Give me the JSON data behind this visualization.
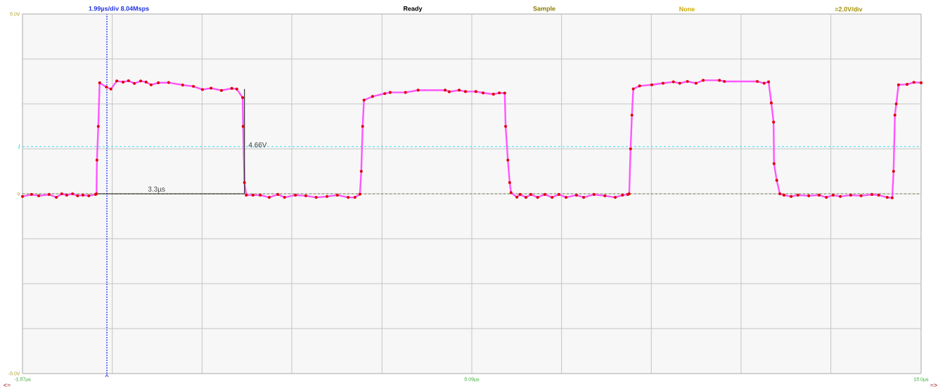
{
  "chart_data": {
    "type": "line",
    "annotations": [
      "1.99µs/div  8.04Msps",
      "Ready",
      "Sample",
      "None",
      "=2.0V/div",
      "<=",
      "=>",
      {
        "text": "3.3µs",
        "x": 0.89,
        "y": 0
      },
      {
        "text": "4.66V",
        "x": 3.12,
        "y": 2.03
      }
    ],
    "xlim": [
      -1.87,
      18.05
    ],
    "ylim": [
      -8,
      8
    ],
    "xticks": [
      {
        "value": -1.87,
        "label": "-1.87µs"
      },
      {
        "value": 0.12,
        "label": null
      },
      {
        "value": 2.11,
        "label": null
      },
      {
        "value": 4.1,
        "label": null
      },
      {
        "value": 6.1,
        "label": null
      },
      {
        "value": 8.09,
        "label": "8.09µs"
      },
      {
        "value": 10.08,
        "label": null
      },
      {
        "value": 12.07,
        "label": null
      },
      {
        "value": 14.06,
        "label": null
      },
      {
        "value": 16.05,
        "label": null
      },
      {
        "value": 18.05,
        "label": "18.0µs"
      }
    ],
    "yticks": [
      {
        "value": 8,
        "label": "8.0V"
      },
      {
        "value": 6,
        "label": null
      },
      {
        "value": 4,
        "label": null
      },
      {
        "value": 2,
        "label": null
      },
      0,
      {
        "value": -2,
        "label": null
      },
      {
        "value": -4,
        "label": null
      },
      {
        "value": -6,
        "label": null
      },
      {
        "value": -8,
        "label": "-8.0V"
      }
    ],
    "grid": true,
    "marker": "circle",
    "ref_lines": [
      {
        "axis": "y",
        "value": 0,
        "color": "#8c8c5a",
        "line_style": "dashed"
      },
      {
        "axis": "y",
        "value": 2.1,
        "label": "/",
        "color": "#33ddee",
        "line_style": "dashed"
      },
      {
        "axis": "x",
        "value": 0.0,
        "label": "^",
        "color": "#2233ee",
        "line_style": "dotted"
      }
    ],
    "series": [
      {
        "color": "#ff55ff",
        "x": [
          -1.87,
          -1.67,
          -1.51,
          -1.28,
          -1.12,
          -1.0,
          -0.89,
          -0.76,
          -0.65,
          -0.53,
          -0.4,
          -0.25,
          -0.23,
          -0.22,
          -0.19,
          -0.16,
          -0.01,
          0.09,
          0.22,
          0.36,
          0.48,
          0.61,
          0.75,
          0.87,
          0.98,
          1.14,
          1.37,
          1.68,
          1.92,
          2.12,
          2.31,
          2.54,
          2.77,
          2.88,
          3.01,
          3.02,
          3.05,
          3.09,
          3.24,
          3.4,
          3.6,
          3.79,
          3.94,
          4.18,
          4.41,
          4.64,
          4.88,
          5.11,
          5.35,
          5.5,
          5.61,
          5.64,
          5.67,
          5.7,
          5.89,
          6.16,
          6.28,
          6.62,
          6.9,
          7.5,
          7.59,
          7.81,
          7.95,
          8.18,
          8.34,
          8.57,
          8.7,
          8.82,
          8.84,
          8.89,
          8.93,
          8.96,
          9.09,
          9.16,
          9.29,
          9.4,
          9.55,
          9.71,
          9.87,
          10.02,
          10.18,
          10.41,
          10.57,
          10.8,
          11.04,
          11.27,
          11.43,
          11.55,
          11.58,
          11.61,
          11.64,
          11.67,
          11.81,
          12.08,
          12.33,
          12.56,
          12.7,
          12.87,
          13.06,
          13.22,
          13.58,
          13.69,
          14.42,
          14.57,
          14.67,
          14.73,
          14.78,
          14.79,
          14.85,
          14.92,
          15.01,
          15.17,
          15.32,
          15.56,
          15.79,
          15.95,
          16.1,
          16.26,
          16.49,
          16.72,
          16.96,
          17.11,
          17.3,
          17.41,
          17.44,
          17.47,
          17.5,
          17.55,
          17.74,
          17.89,
          18.05
        ],
        "values": [
          -0.12,
          -0.03,
          -0.09,
          -0.03,
          -0.16,
          0.0,
          -0.06,
          0.0,
          -0.09,
          -0.06,
          -0.09,
          -0.03,
          0.0,
          1.5,
          3.0,
          4.94,
          4.75,
          4.66,
          5.02,
          4.97,
          5.03,
          4.91,
          5.02,
          4.97,
          4.85,
          4.94,
          4.95,
          4.84,
          4.78,
          4.64,
          4.7,
          4.6,
          4.69,
          4.66,
          4.28,
          3.0,
          0.5,
          -0.06,
          -0.06,
          -0.06,
          -0.16,
          -0.03,
          -0.16,
          -0.06,
          -0.09,
          -0.16,
          -0.12,
          -0.06,
          -0.16,
          -0.16,
          -0.02,
          1.0,
          3.0,
          4.17,
          4.33,
          4.46,
          4.51,
          4.51,
          4.61,
          4.61,
          4.54,
          4.61,
          4.55,
          4.55,
          4.49,
          4.43,
          4.49,
          4.48,
          3.0,
          1.5,
          0.5,
          0.05,
          -0.15,
          -0.03,
          -0.16,
          -0.03,
          -0.16,
          -0.03,
          -0.16,
          -0.03,
          -0.16,
          -0.06,
          -0.16,
          -0.03,
          -0.09,
          -0.16,
          -0.06,
          -0.03,
          0.0,
          2.0,
          3.5,
          4.67,
          4.8,
          4.85,
          4.92,
          4.98,
          4.92,
          5.0,
          4.92,
          5.05,
          5.05,
          5.0,
          5.0,
          4.92,
          4.98,
          4.04,
          3.19,
          1.34,
          0.6,
          0.0,
          -0.06,
          -0.12,
          -0.06,
          -0.09,
          -0.06,
          -0.16,
          -0.06,
          -0.12,
          -0.06,
          -0.09,
          -0.03,
          -0.06,
          -0.16,
          -0.18,
          1.0,
          3.5,
          4.0,
          4.85,
          4.87,
          4.96,
          4.94
        ]
      },
      {
        "color": "#333333",
        "marker": "none",
        "x": [
          -0.23,
          3.05
        ],
        "values": [
          0,
          0
        ]
      },
      {
        "color": "#333333",
        "marker": "none",
        "x": [
          3.05,
          3.05
        ],
        "values": [
          0,
          4.66
        ]
      }
    ]
  }
}
